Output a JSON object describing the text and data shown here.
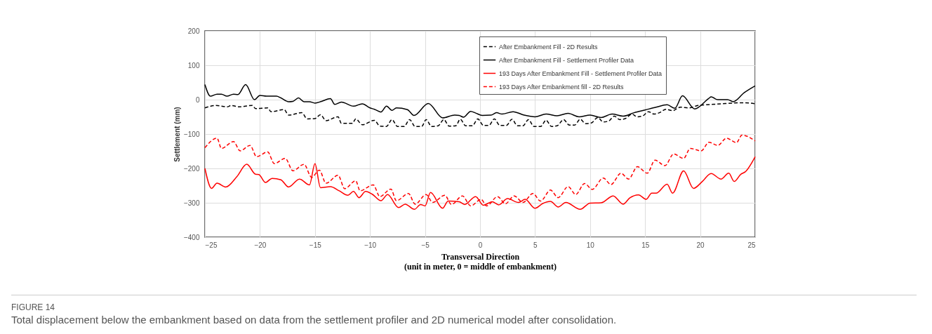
{
  "chart_data": {
    "type": "line",
    "xlabel": "Transversal Direction\n(unit in meter, 0 = middle of embankment)",
    "ylabel": "Settlement (mm)",
    "xlim": [
      -25,
      25
    ],
    "xticks": [
      -25,
      -20,
      -15,
      -10,
      -5,
      0,
      5,
      10,
      15,
      20,
      25
    ],
    "ylim": [
      -400,
      200
    ],
    "yticks": [
      -400,
      -300,
      -200,
      -100,
      0,
      100,
      200
    ],
    "grid": true,
    "legend": "top right",
    "annotations": [
      "FIGURE 14",
      "Total displacement below the embankment based on data from the settlement profiler and 2D numerical model after consolidation."
    ],
    "series": [
      {
        "name": "After Embankment Fill - 2D Results",
        "color": "#000000",
        "line_style": "dashed",
        "x": [
          -25,
          -24.0,
          -23,
          -22.6,
          -21.9,
          -20.7,
          -20.4,
          -19.3,
          -19,
          -17.8,
          -17.4,
          -16.2,
          -15.7,
          -15,
          -14.5,
          -14.0,
          -12.9,
          -12.6,
          -11.6,
          -11.3,
          -10.7,
          -9.6,
          -9.1,
          -8.5,
          -8.0,
          -7.5,
          -6.9,
          -6.4,
          -5.9,
          -5.3,
          -4.9,
          -4.4,
          -3.8,
          -3.3,
          -2.8,
          -2.2,
          -1.8,
          -1.3,
          -0.7,
          -0.2,
          0.3,
          0.8,
          1.3,
          1.8,
          2.4,
          2.9,
          3.4,
          3.9,
          4.4,
          4.9,
          5.5,
          6.0,
          6.5,
          7.0,
          7.6,
          8.1,
          8.6,
          9.1,
          9.6,
          10.1,
          10.7,
          11.2,
          11.7,
          12.2,
          12.7,
          13.2,
          13.8,
          14.3,
          14.8,
          15.3,
          15.8,
          16.3,
          16.9,
          17.5,
          18.2,
          19.0,
          19.8,
          21,
          22,
          23,
          24,
          25
        ],
        "values": [
          -24,
          -17,
          -21,
          -17,
          -21,
          -17,
          -26,
          -24,
          -35,
          -29,
          -45,
          -38,
          -56,
          -55,
          -44,
          -61,
          -50,
          -69,
          -69,
          -56,
          -73,
          -60,
          -77,
          -78,
          -58,
          -78,
          -78,
          -58,
          -78,
          -78,
          -58,
          -78,
          -76,
          -58,
          -77,
          -76,
          -57,
          -76,
          -76,
          -56,
          -75,
          -75,
          -56,
          -75,
          -75,
          -57,
          -76,
          -76,
          -58,
          -78,
          -78,
          -60,
          -78,
          -76,
          -58,
          -74,
          -74,
          -57,
          -70,
          -68,
          -52,
          -65,
          -62,
          -48,
          -58,
          -55,
          -42,
          -50,
          -47,
          -35,
          -42,
          -38,
          -28,
          -32,
          -22,
          -24,
          -17,
          -14,
          -12,
          -10,
          -9,
          -12
        ]
      },
      {
        "name": "After Embankment Fill - Settlement Profiler Data",
        "color": "#000000",
        "line_style": "solid",
        "x": [
          -25,
          -24.5,
          -23.9,
          -23.5,
          -23.0,
          -22.4,
          -22.0,
          -21.3,
          -20.5,
          -20,
          -19.4,
          -18.5,
          -18.1,
          -17.4,
          -17,
          -16.5,
          -16,
          -15.5,
          -15,
          -14.4,
          -13.6,
          -13.2,
          -12.6,
          -11.5,
          -10.7,
          -10,
          -9.6,
          -9.0,
          -8.5,
          -8.0,
          -7.6,
          -6.6,
          -6.0,
          -4.7,
          -3.4,
          -2.3,
          -1.9,
          -1.5,
          -0.85,
          -0.4,
          0.2,
          1,
          1.5,
          2,
          3,
          4,
          5,
          6,
          7,
          8,
          9,
          10,
          11,
          12,
          13,
          14,
          15,
          16,
          17,
          17.7,
          18.4,
          19.5,
          20.8,
          21.0,
          21.6,
          22.5,
          23.0,
          24,
          25
        ],
        "values": [
          44,
          10,
          16,
          16,
          10,
          16,
          15,
          44,
          0,
          12,
          10,
          10,
          5,
          -6,
          -5,
          5,
          -6,
          -6,
          -10,
          -5,
          3,
          -14,
          -7,
          -19,
          -12,
          -24,
          -28,
          -36,
          -19,
          -31,
          -24,
          -29,
          -46,
          -11,
          -53,
          -45,
          -46,
          -51,
          -34,
          -39,
          -46,
          -45,
          -38,
          -42,
          -35,
          -45,
          -50,
          -42,
          -47,
          -40,
          -50,
          -45,
          -52,
          -42,
          -48,
          -38,
          -30,
          -22,
          -15,
          -25,
          11,
          -27,
          4,
          8,
          0,
          0,
          -6,
          20,
          40
        ]
      },
      {
        "name": "193 Days After Embankment Fill - Settlement Profiler Data",
        "color": "#ff0000",
        "line_style": "solid",
        "x": [
          -25,
          -24.4,
          -23.9,
          -23.1,
          -22.1,
          -21.2,
          -20.4,
          -20.1,
          -19.5,
          -18.9,
          -18.1,
          -17.4,
          -16.4,
          -15.5,
          -15,
          -14.5,
          -13.6,
          -12.8,
          -12.0,
          -11.5,
          -11,
          -10.4,
          -9.8,
          -9.0,
          -8.4,
          -7.4,
          -6.8,
          -5.96,
          -5.4,
          -5.0,
          -4.5,
          -3.4,
          -2.9,
          -1.9,
          -1.4,
          -0.4,
          0.3,
          1.1,
          1.7,
          2.5,
          3.5,
          4.1,
          5.0,
          5.7,
          6.4,
          7.1,
          7.8,
          9.1,
          10.0,
          11.0,
          12.1,
          13.0,
          13.6,
          14.4,
          15.1,
          15.6,
          16.0,
          17.0,
          17.5,
          18.5,
          19.4,
          20.2,
          21.0,
          21.9,
          22.6,
          23.1,
          23.7,
          24.1,
          25
        ],
        "values": [
          -200,
          -258,
          -243,
          -254,
          -224,
          -188,
          -217,
          -218,
          -241,
          -229,
          -233,
          -254,
          -231,
          -248,
          -186,
          -256,
          -253,
          -265,
          -278,
          -267,
          -285,
          -267,
          -275,
          -294,
          -276,
          -314,
          -304,
          -319,
          -305,
          -309,
          -270,
          -316,
          -295,
          -297,
          -305,
          -282,
          -307,
          -297,
          -306,
          -288,
          -299,
          -290,
          -316,
          -302,
          -296,
          -312,
          -299,
          -319,
          -301,
          -300,
          -280,
          -304,
          -286,
          -277,
          -290,
          -272,
          -272,
          -246,
          -272,
          -207,
          -258,
          -238,
          -215,
          -231,
          -214,
          -238,
          -217,
          -210,
          -166
        ]
      },
      {
        "name": "193 Days After Embankment fill - 2D Results",
        "color": "#ff0000",
        "line_style": "dashed",
        "x": [
          -25,
          -23.9,
          -23.5,
          -22.4,
          -21.8,
          -20.9,
          -20.3,
          -19.3,
          -18.7,
          -17.7,
          -17.0,
          -16.0,
          -15.3,
          -14.6,
          -14.0,
          -12.9,
          -12.3,
          -11.3,
          -10.9,
          -9.7,
          -9.1,
          -8.1,
          -7.6,
          -6.5,
          -5.9,
          -4.9,
          -4.3,
          -3.2,
          -2.6,
          -1.6,
          -0.85,
          0.1,
          0.6,
          1.6,
          2.3,
          3.1,
          3.9,
          4.8,
          5.5,
          6.4,
          7.1,
          8.0,
          8.7,
          9.5,
          10.2,
          11.2,
          11.9,
          12.8,
          13.5,
          14.3,
          15.2,
          15.9,
          16.8,
          17.6,
          18.5,
          19.1,
          20.1,
          20.8,
          21.6,
          22.4,
          23.3,
          23.8,
          25
        ],
        "values": [
          -140,
          -112,
          -142,
          -122,
          -149,
          -133,
          -166,
          -152,
          -186,
          -171,
          -207,
          -188,
          -226,
          -205,
          -243,
          -220,
          -259,
          -236,
          -265,
          -248,
          -282,
          -260,
          -294,
          -273,
          -304,
          -276,
          -299,
          -278,
          -305,
          -280,
          -309,
          -290,
          -309,
          -282,
          -303,
          -280,
          -299,
          -273,
          -295,
          -263,
          -285,
          -253,
          -276,
          -244,
          -261,
          -228,
          -247,
          -214,
          -231,
          -195,
          -214,
          -176,
          -192,
          -158,
          -171,
          -142,
          -149,
          -124,
          -133,
          -112,
          -125,
          -103,
          -120
        ]
      }
    ]
  }
}
